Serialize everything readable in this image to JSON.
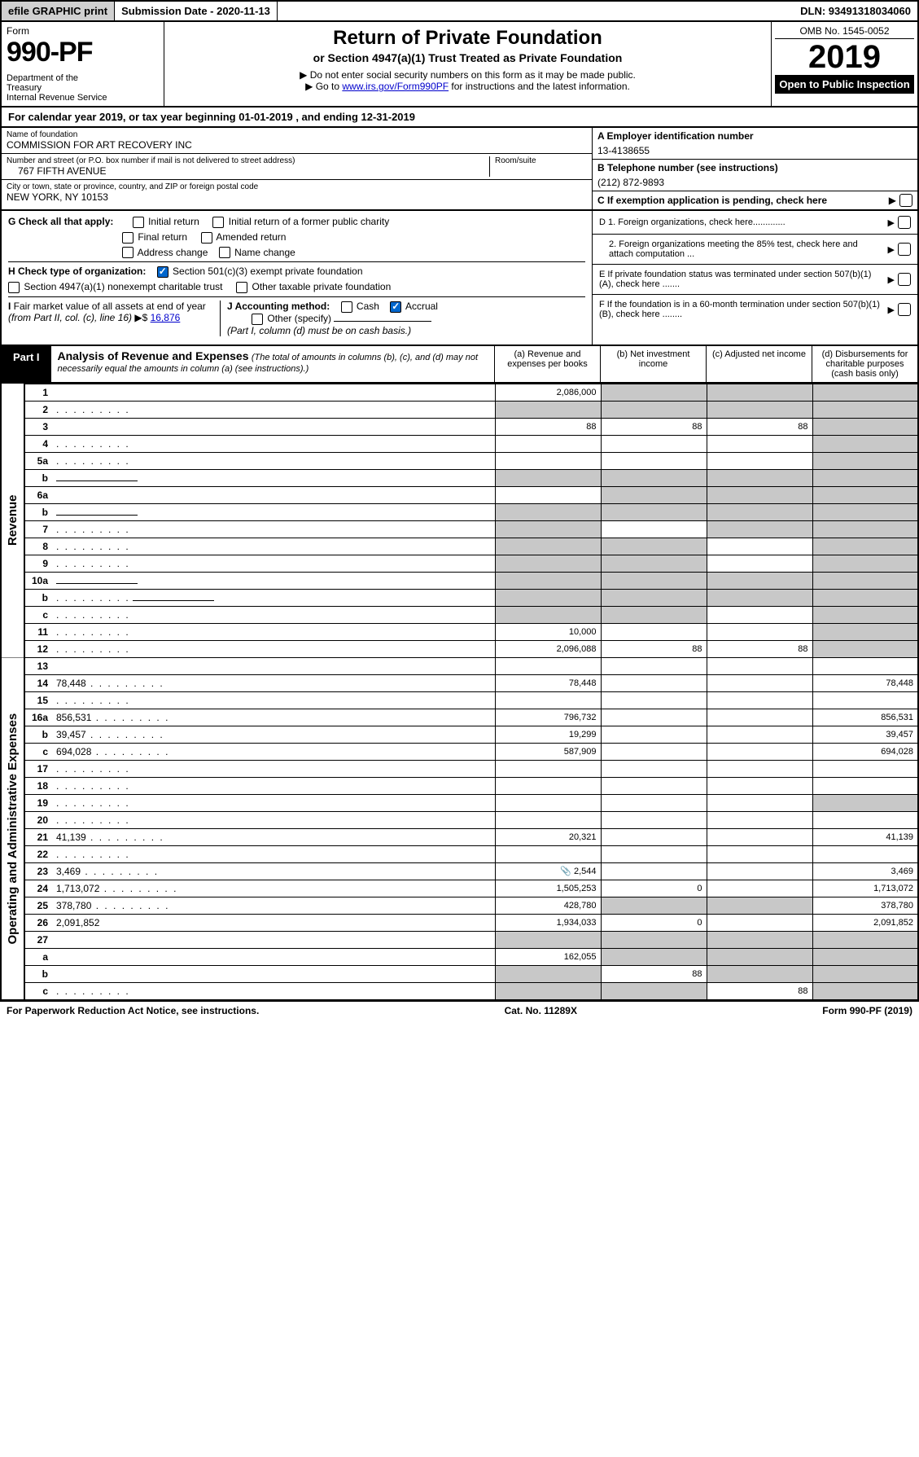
{
  "topbar": {
    "efile": "efile GRAPHIC print",
    "submission": "Submission Date - 2020-11-13",
    "dln": "DLN: 93491318034060"
  },
  "header": {
    "form_label": "Form",
    "form_number": "990-PF",
    "dept": "Department of the Treasury\nInternal Revenue Service",
    "title": "Return of Private Foundation",
    "subtitle": "or Section 4947(a)(1) Trust Treated as Private Foundation",
    "instr1": "▶ Do not enter social security numbers on this form as it may be made public.",
    "instr2_pre": "▶ Go to ",
    "instr2_link": "www.irs.gov/Form990PF",
    "instr2_post": " for instructions and the latest information.",
    "omb": "OMB No. 1545-0052",
    "year": "2019",
    "open_public": "Open to Public Inspection"
  },
  "cal_year": "For calendar year 2019, or tax year beginning 01-01-2019          , and ending 12-31-2019",
  "info": {
    "name_label": "Name of foundation",
    "name_val": "COMMISSION FOR ART RECOVERY INC",
    "addr_label": "Number and street (or P.O. box number if mail is not delivered to street address)",
    "addr_val": "767 FIFTH AVENUE",
    "room_label": "Room/suite",
    "city_label": "City or town, state or province, country, and ZIP or foreign postal code",
    "city_val": "NEW YORK, NY  10153",
    "a_label": "A Employer identification number",
    "a_val": "13-4138655",
    "b_label": "B Telephone number (see instructions)",
    "b_val": "(212) 872-9893",
    "c_label": "C If exemption application is pending, check here"
  },
  "checks": {
    "g_label": "G Check all that apply:",
    "initial": "Initial return",
    "initial_former": "Initial return of a former public charity",
    "final": "Final return",
    "amended": "Amended return",
    "address": "Address change",
    "name": "Name change",
    "h_label": "H Check type of organization:",
    "h_501c3": "Section 501(c)(3) exempt private foundation",
    "h_4947": "Section 4947(a)(1) nonexempt charitable trust",
    "h_other": "Other taxable private foundation",
    "i_label": "I Fair market value of all assets at end of year (from Part II, col. (c), line 16) ▶$",
    "i_val": "16,876",
    "j_label": "J Accounting method:",
    "j_cash": "Cash",
    "j_accrual": "Accrual",
    "j_other": "Other (specify)",
    "j_note": "(Part I, column (d) must be on cash basis.)",
    "d1": "D 1. Foreign organizations, check here.............",
    "d2": "2. Foreign organizations meeting the 85% test, check here and attach computation ...",
    "e": "E  If private foundation status was terminated under section 507(b)(1)(A), check here .......",
    "f": "F  If the foundation is in a 60-month termination under section 507(b)(1)(B), check here ........"
  },
  "part1": {
    "tab": "Part I",
    "title": "Analysis of Revenue and Expenses",
    "note": "(The total of amounts in columns (b), (c), and (d) may not necessarily equal the amounts in column (a) (see instructions).)",
    "col_a": "(a)   Revenue and expenses per books",
    "col_b": "(b)  Net investment income",
    "col_c": "(c)  Adjusted net income",
    "col_d": "(d)  Disbursements for charitable purposes (cash basis only)"
  },
  "rows": [
    {
      "n": "1",
      "d": "",
      "a": "2,086,000",
      "b": "",
      "c": "",
      "bs": true,
      "cs": true,
      "ds": true
    },
    {
      "n": "2",
      "d": "",
      "chk": true,
      "dots": true,
      "a": "",
      "b": "",
      "c": "",
      "as": true,
      "bs": true,
      "cs": true,
      "ds": true
    },
    {
      "n": "3",
      "d": "",
      "a": "88",
      "b": "88",
      "c": "88",
      "ds": true
    },
    {
      "n": "4",
      "d": "",
      "dots": true,
      "a": "",
      "b": "",
      "c": "",
      "ds": true
    },
    {
      "n": "5a",
      "d": "",
      "dots": true,
      "a": "",
      "b": "",
      "c": "",
      "ds": true
    },
    {
      "n": "b",
      "d": "",
      "fill": true,
      "a": "",
      "b": "",
      "c": "",
      "as": true,
      "bs": true,
      "cs": true,
      "ds": true
    },
    {
      "n": "6a",
      "d": "",
      "a": "",
      "b": "",
      "c": "",
      "bs": true,
      "cs": true,
      "ds": true
    },
    {
      "n": "b",
      "d": "",
      "fill": true,
      "a": "",
      "b": "",
      "c": "",
      "as": true,
      "bs": true,
      "cs": true,
      "ds": true
    },
    {
      "n": "7",
      "d": "",
      "dots": true,
      "a": "",
      "b": "",
      "c": "",
      "as": true,
      "cs": true,
      "ds": true
    },
    {
      "n": "8",
      "d": "",
      "dots": true,
      "a": "",
      "b": "",
      "c": "",
      "as": true,
      "bs": true,
      "ds": true
    },
    {
      "n": "9",
      "d": "",
      "dots": true,
      "a": "",
      "b": "",
      "c": "",
      "as": true,
      "bs": true,
      "ds": true
    },
    {
      "n": "10a",
      "d": "",
      "fill": true,
      "a": "",
      "b": "",
      "c": "",
      "as": true,
      "bs": true,
      "cs": true,
      "ds": true
    },
    {
      "n": "b",
      "d": "",
      "dots": true,
      "fill": true,
      "a": "",
      "b": "",
      "c": "",
      "as": true,
      "bs": true,
      "cs": true,
      "ds": true
    },
    {
      "n": "c",
      "d": "",
      "dots": true,
      "a": "",
      "b": "",
      "c": "",
      "as": true,
      "bs": true,
      "ds": true
    },
    {
      "n": "11",
      "d": "",
      "dots": true,
      "a": "10,000",
      "b": "",
      "c": "",
      "ds": true
    },
    {
      "n": "12",
      "d": "",
      "dots": true,
      "a": "2,096,088",
      "b": "88",
      "c": "88",
      "ds": true
    }
  ],
  "rows2": [
    {
      "n": "13",
      "d": "",
      "a": "",
      "b": "",
      "c": ""
    },
    {
      "n": "14",
      "d": "78,448",
      "dots": true,
      "a": "78,448",
      "b": "",
      "c": ""
    },
    {
      "n": "15",
      "d": "",
      "dots": true,
      "a": "",
      "b": "",
      "c": ""
    },
    {
      "n": "16a",
      "d": "856,531",
      "dots": true,
      "a": "796,732",
      "b": "",
      "c": ""
    },
    {
      "n": "b",
      "d": "39,457",
      "dots": true,
      "a": "19,299",
      "b": "",
      "c": ""
    },
    {
      "n": "c",
      "d": "694,028",
      "dots": true,
      "a": "587,909",
      "b": "",
      "c": ""
    },
    {
      "n": "17",
      "d": "",
      "dots": true,
      "a": "",
      "b": "",
      "c": ""
    },
    {
      "n": "18",
      "d": "",
      "dots": true,
      "a": "",
      "b": "",
      "c": ""
    },
    {
      "n": "19",
      "d": "",
      "dots": true,
      "a": "",
      "b": "",
      "c": "",
      "ds": true
    },
    {
      "n": "20",
      "d": "",
      "dots": true,
      "a": "",
      "b": "",
      "c": ""
    },
    {
      "n": "21",
      "d": "41,139",
      "dots": true,
      "a": "20,321",
      "b": "",
      "c": ""
    },
    {
      "n": "22",
      "d": "",
      "dots": true,
      "a": "",
      "b": "",
      "c": ""
    },
    {
      "n": "23",
      "d": "3,469",
      "dots": true,
      "a": "2,544",
      "icon": true,
      "b": "",
      "c": ""
    },
    {
      "n": "24",
      "d": "1,713,072",
      "dots": true,
      "a": "1,505,253",
      "b": "0",
      "c": ""
    },
    {
      "n": "25",
      "d": "378,780",
      "dots": true,
      "a": "428,780",
      "b": "",
      "c": "",
      "bs": true,
      "cs": true
    },
    {
      "n": "26",
      "d": "2,091,852",
      "a": "1,934,033",
      "b": "0",
      "c": ""
    },
    {
      "n": "27",
      "d": "",
      "a": "",
      "b": "",
      "c": "",
      "as": true,
      "bs": true,
      "cs": true,
      "ds": true
    },
    {
      "n": "a",
      "d": "",
      "a": "162,055",
      "b": "",
      "c": "",
      "bs": true,
      "cs": true,
      "ds": true
    },
    {
      "n": "b",
      "d": "",
      "a": "",
      "b": "88",
      "c": "",
      "as": true,
      "cs": true,
      "ds": true
    },
    {
      "n": "c",
      "d": "",
      "dots": true,
      "a": "",
      "b": "",
      "c": "88",
      "as": true,
      "bs": true,
      "ds": true
    }
  ],
  "vtab1": "Revenue",
  "vtab2": "Operating and Administrative Expenses",
  "footer": {
    "left": "For Paperwork Reduction Act Notice, see instructions.",
    "mid": "Cat. No. 11289X",
    "right": "Form 990-PF (2019)"
  }
}
